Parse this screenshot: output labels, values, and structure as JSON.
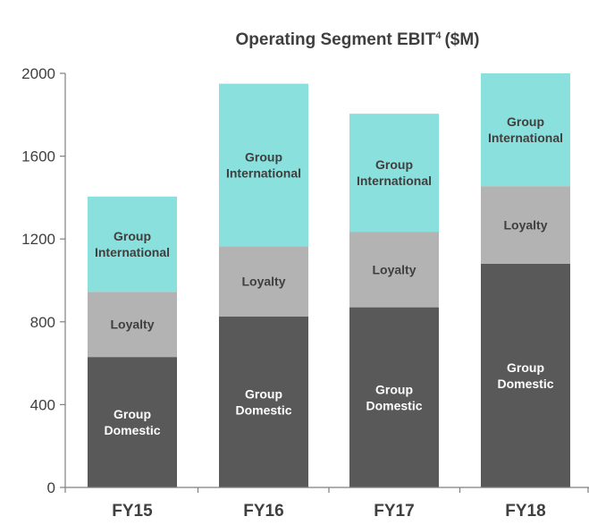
{
  "chart_data": {
    "type": "bar",
    "stacked": true,
    "title": "Operating Segment EBIT",
    "title_superscript": "4",
    "title_unit": "($M)",
    "categories": [
      "FY15",
      "FY16",
      "FY17",
      "FY18"
    ],
    "series": [
      {
        "name": "Group Domestic",
        "label_lines": [
          "Group",
          "Domestic"
        ],
        "color": "#595959",
        "label_color": "#ffffff",
        "values": [
          630,
          825,
          870,
          1080
        ]
      },
      {
        "name": "Loyalty",
        "label_lines": [
          "Loyalty"
        ],
        "color": "#b3b3b3",
        "label_color": "#3f3f3f",
        "values": [
          315,
          340,
          365,
          375
        ]
      },
      {
        "name": "Group International",
        "label_lines": [
          "Group",
          "International"
        ],
        "color": "#8ae0dc",
        "label_color": "#3f3f3f",
        "values": [
          460,
          785,
          570,
          545
        ]
      }
    ],
    "yticks": [
      0,
      400,
      800,
      1200,
      1600,
      2000
    ],
    "ylim": [
      0,
      2000
    ],
    "xlabel": "",
    "ylabel": "",
    "grid": false,
    "legend": "none (labels inside bars)"
  }
}
